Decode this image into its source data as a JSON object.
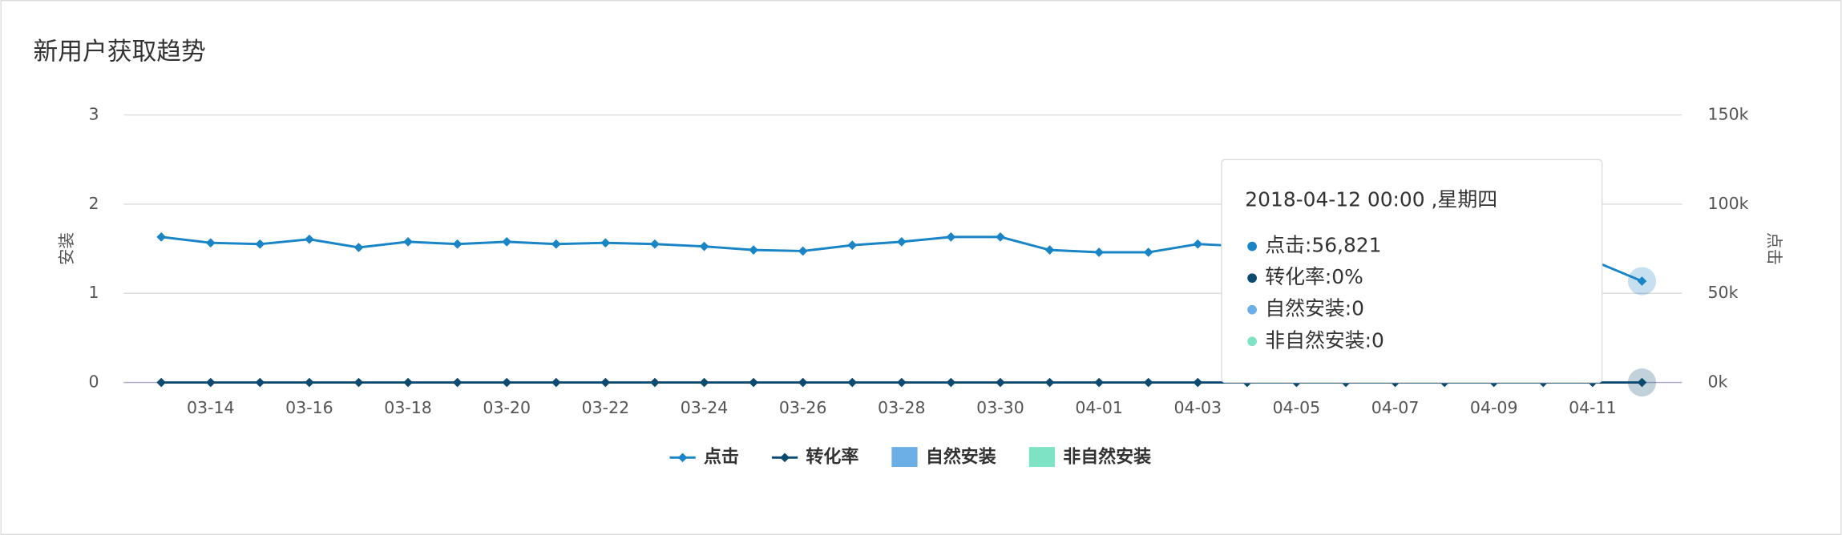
{
  "chart_data": {
    "type": "line",
    "title": "新用户获取趋势",
    "categories": [
      null,
      "03-14",
      null,
      "03-16",
      null,
      "03-18",
      null,
      "03-20",
      null,
      "03-22",
      null,
      "03-24",
      null,
      "03-26",
      null,
      "03-28",
      null,
      "03-30",
      null,
      "04-01",
      null,
      "04-03",
      null,
      "04-05",
      null,
      "04-07",
      null,
      "04-09",
      null,
      "04-11",
      null
    ],
    "ylabel": "安装",
    "y2label": "点击",
    "ylim": [
      0,
      3
    ],
    "yticks": [
      0,
      1,
      2,
      3
    ],
    "y2lim": [
      0,
      150000
    ],
    "y2ticks": [
      {
        "value": 0,
        "label": "0k"
      },
      {
        "value": 50000,
        "label": "50k"
      },
      {
        "value": 100000,
        "label": "100k"
      },
      {
        "value": 150000,
        "label": "150k"
      }
    ],
    "grid": true,
    "legend": "bottom",
    "series": [
      {
        "name": "点击",
        "color": "#1a85c6",
        "axis": "y2",
        "values": [
          81600,
          78300,
          77600,
          80300,
          75700,
          78900,
          77600,
          78900,
          77600,
          78300,
          77600,
          76300,
          74300,
          73700,
          77000,
          78900,
          81600,
          81600,
          74300,
          73000,
          73000,
          77600,
          76300,
          77000,
          76000,
          77000,
          76000,
          75000,
          72000,
          68400,
          56821
        ]
      },
      {
        "name": "转化率",
        "color": "#0d4a70",
        "axis": "y",
        "values": [
          0,
          0,
          0,
          0,
          0,
          0,
          0,
          0,
          0,
          0,
          0,
          0,
          0,
          0,
          0,
          0,
          0,
          0,
          0,
          0,
          0,
          0,
          0,
          0,
          0,
          0,
          0,
          0,
          0,
          0,
          0
        ]
      },
      {
        "name": "自然安装",
        "color": "#6caee6",
        "axis": "y",
        "type": "bar",
        "values": [
          0,
          0,
          0,
          0,
          0,
          0,
          0,
          0,
          0,
          0,
          0,
          0,
          0,
          0,
          0,
          0,
          0,
          0,
          0,
          0,
          0,
          0,
          0,
          0,
          0,
          0,
          0,
          0,
          0,
          0,
          0
        ]
      },
      {
        "name": "非自然安装",
        "color": "#7ee3c4",
        "axis": "y",
        "type": "bar",
        "values": [
          0,
          0,
          0,
          0,
          0,
          0,
          0,
          0,
          0,
          0,
          0,
          0,
          0,
          0,
          0,
          0,
          0,
          0,
          0,
          0,
          0,
          0,
          0,
          0,
          0,
          0,
          0,
          0,
          0,
          0,
          0
        ]
      }
    ],
    "tooltip": {
      "title": "2018-04-12 00:00 ,星期四",
      "items": [
        "点击:56,821",
        "转化率:0%",
        "自然安装:0",
        "非自然安装:0"
      ]
    }
  }
}
